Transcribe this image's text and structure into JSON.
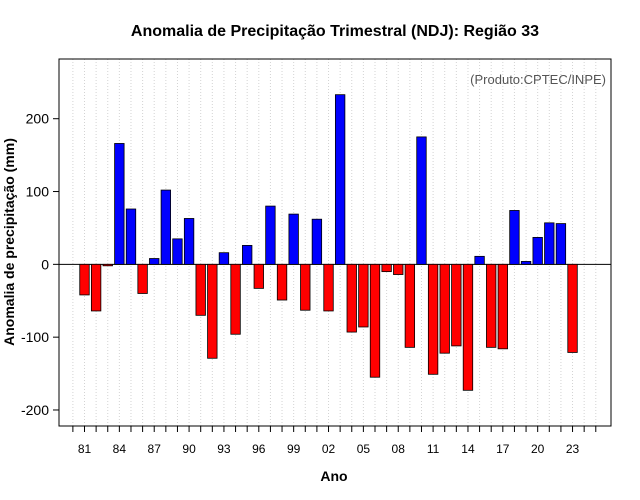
{
  "chart_data": {
    "type": "bar",
    "title": "Anomalia de Precipitação Trimestral (NDJ): Região 33",
    "source_note": "(Produto:CPTEC/INPE)",
    "xlabel": "Ano",
    "ylabel": "Anomalia de precipitação (mm)",
    "ylim": [
      -222,
      282
    ],
    "yticks": [
      -200,
      -100,
      0,
      100,
      200
    ],
    "ytick_labels": [
      "-200",
      "-100",
      "0",
      "100",
      "200"
    ],
    "years": [
      1981,
      1982,
      1983,
      1984,
      1985,
      1986,
      1987,
      1988,
      1989,
      1990,
      1991,
      1992,
      1993,
      1994,
      1995,
      1996,
      1997,
      1998,
      1999,
      2000,
      2001,
      2002,
      2003,
      2004,
      2005,
      2006,
      2007,
      2008,
      2009,
      2010,
      2011,
      2012,
      2013,
      2014,
      2015,
      2016,
      2017,
      2018,
      2019,
      2020,
      2021,
      2022,
      2023
    ],
    "values": [
      -42,
      -64,
      -2,
      166,
      76,
      -40,
      8,
      102,
      35,
      63,
      -70,
      -129,
      16,
      -96,
      26,
      -33,
      80,
      -49,
      69,
      -63,
      62,
      -64,
      233,
      -93,
      -86,
      -155,
      -10,
      -14,
      -114,
      175,
      -151,
      -122,
      -112,
      -173,
      11,
      -114,
      -116,
      74,
      4,
      37,
      57,
      56,
      -121
    ],
    "xtick_labels": [
      {
        "year": 1981,
        "label": "81"
      },
      {
        "year": 1984,
        "label": "84"
      },
      {
        "year": 1987,
        "label": "87"
      },
      {
        "year": 1990,
        "label": "90"
      },
      {
        "year": 1993,
        "label": "93"
      },
      {
        "year": 1996,
        "label": "96"
      },
      {
        "year": 1999,
        "label": "99"
      },
      {
        "year": 2002,
        "label": "02"
      },
      {
        "year": 2005,
        "label": "05"
      },
      {
        "year": 2008,
        "label": "08"
      },
      {
        "year": 2011,
        "label": "11"
      },
      {
        "year": 2014,
        "label": "14"
      },
      {
        "year": 2017,
        "label": "17"
      },
      {
        "year": 2020,
        "label": "20"
      },
      {
        "year": 2023,
        "label": "23"
      }
    ],
    "minor_ticks_years": [
      1980,
      1981,
      1982,
      1983,
      1984,
      1985,
      1986,
      1987,
      1988,
      1989,
      1990,
      1991,
      1992,
      1993,
      1994,
      1995,
      1996,
      1997,
      1998,
      1999,
      2000,
      2001,
      2002,
      2003,
      2004,
      2005,
      2006,
      2007,
      2008,
      2009,
      2010,
      2011,
      2012,
      2013,
      2014,
      2015,
      2016,
      2017,
      2018,
      2019,
      2020,
      2021,
      2022,
      2023,
      2024,
      2025
    ],
    "grid": true,
    "colors": {
      "positive": "#0000ff",
      "negative": "#ff0000",
      "zero_line": "#000000",
      "grid": "#d3d3d3"
    }
  }
}
